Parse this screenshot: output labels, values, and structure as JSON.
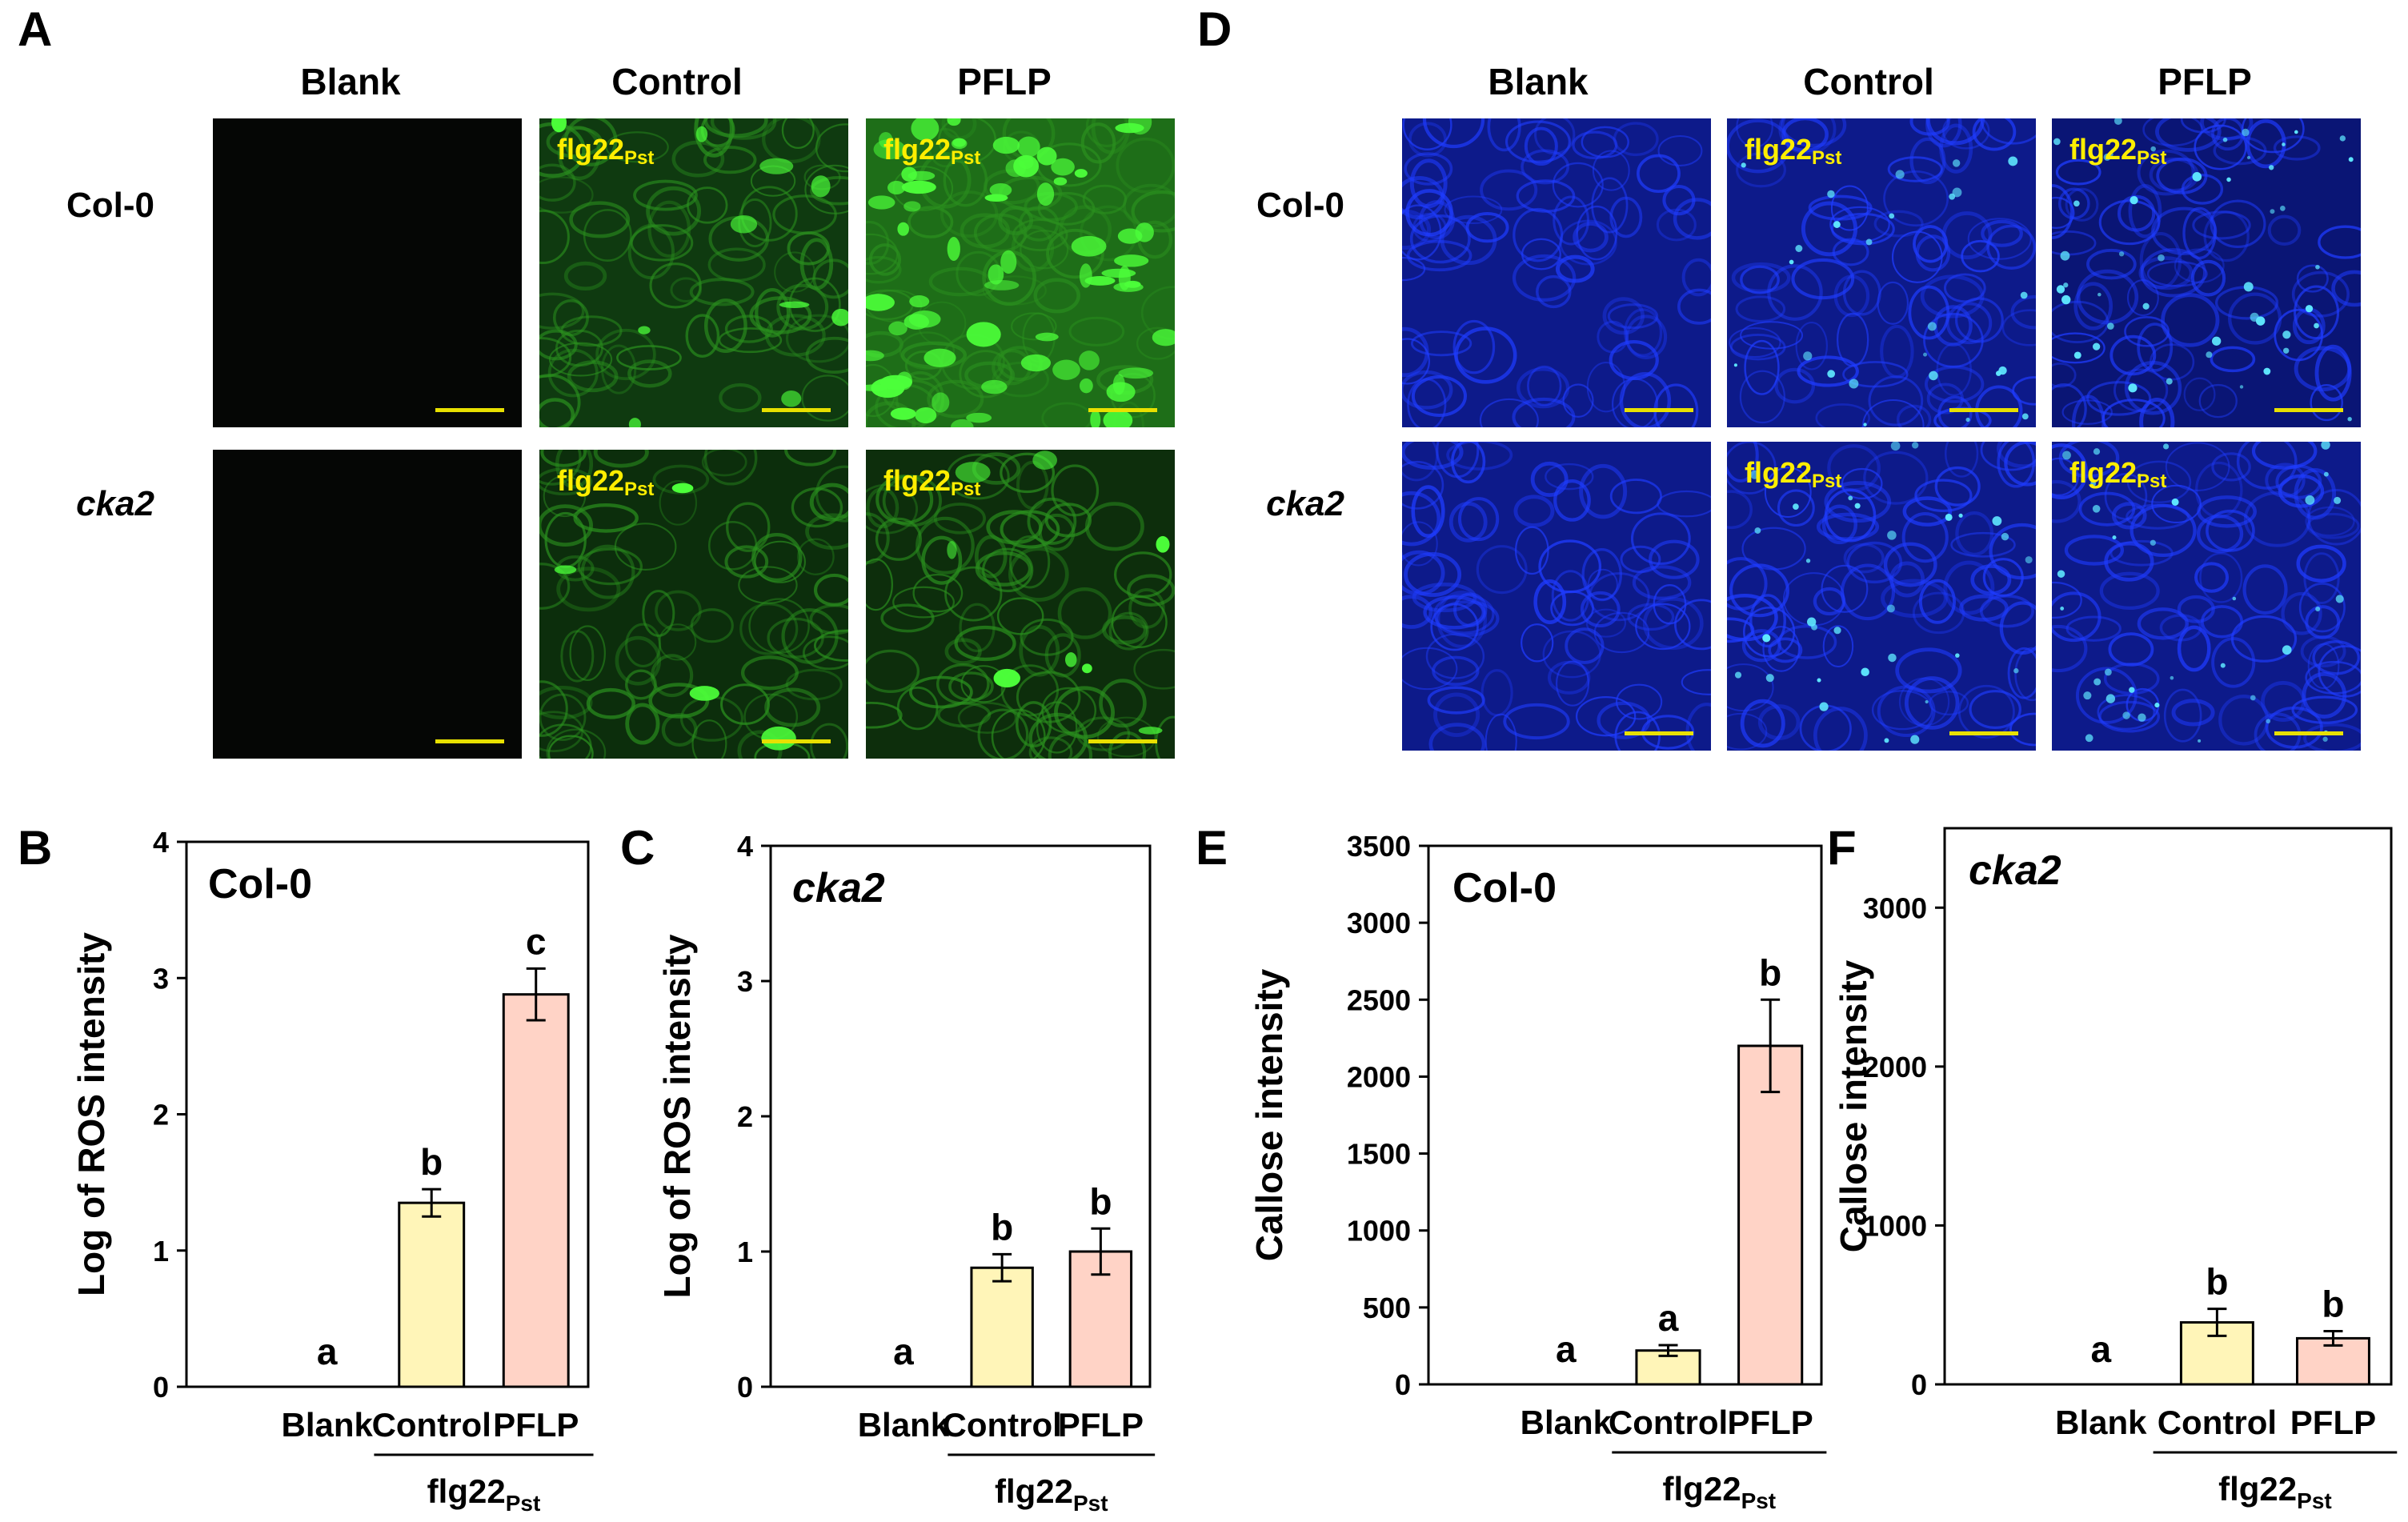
{
  "panels": {
    "A": {
      "letter": "A",
      "columns": [
        "Blank",
        "Control",
        "PFLP"
      ],
      "rows": [
        "Col-0",
        "cka2"
      ],
      "tag_main": "flg22",
      "tag_sub": "Pst",
      "stain": "ROS",
      "colors": {
        "cell": "#2a8f1e",
        "bright": "#4cff3a"
      }
    },
    "D": {
      "letter": "D",
      "columns": [
        "Blank",
        "Control",
        "PFLP"
      ],
      "rows": [
        "Col-0",
        "cka2"
      ],
      "tag_main": "flg22",
      "tag_sub": "Pst",
      "stain": "Callose",
      "colors": {
        "cell": "#1f3cff",
        "bright": "#5fe8ff"
      }
    }
  },
  "colors": {
    "blank_bar": "#ffffff",
    "control_bar": "#fff5b8",
    "pflp_bar": "#ffd3c6",
    "tag_yellow": "#ffee00"
  },
  "chart_data": [
    {
      "id": "B",
      "type": "bar",
      "title": "Col-0",
      "title_italic": false,
      "ylabel": "Log of ROS intensity",
      "ylim": [
        0,
        4
      ],
      "yticks": [
        0,
        1,
        2,
        3,
        4
      ],
      "categories": [
        "Blank",
        "Control",
        "PFLP"
      ],
      "values": [
        0,
        1.35,
        2.88
      ],
      "errors": [
        0,
        0.1,
        0.19
      ],
      "letters": [
        "a",
        "b",
        "c"
      ],
      "group_label": "flg22",
      "group_label_sub": "Pst"
    },
    {
      "id": "C",
      "type": "bar",
      "title": "cka2",
      "title_italic": true,
      "ylabel": "Log of ROS intensity",
      "ylim": [
        0,
        4
      ],
      "yticks": [
        0,
        1,
        2,
        3,
        4
      ],
      "categories": [
        "Blank",
        "Control",
        "PFLP"
      ],
      "values": [
        0,
        0.88,
        1.0
      ],
      "errors": [
        0,
        0.1,
        0.17
      ],
      "letters": [
        "a",
        "b",
        "b"
      ],
      "group_label": "flg22",
      "group_label_sub": "Pst"
    },
    {
      "id": "E",
      "type": "bar",
      "title": "Col-0",
      "title_italic": false,
      "ylabel": "Callose intensity",
      "ylim": [
        0,
        3500
      ],
      "yticks": [
        0,
        500,
        1000,
        1500,
        2000,
        2500,
        3000,
        3500
      ],
      "categories": [
        "Blank",
        "Control",
        "PFLP"
      ],
      "values": [
        0,
        220,
        2200
      ],
      "errors": [
        0,
        35,
        300
      ],
      "letters": [
        "a",
        "a",
        "b"
      ],
      "group_label": "flg22",
      "group_label_sub": "Pst"
    },
    {
      "id": "F",
      "type": "bar",
      "title": "cka2",
      "title_italic": true,
      "ylabel": "Callose intensity",
      "ylim": [
        0,
        3500
      ],
      "yticks": [
        0,
        1000,
        2000,
        3000
      ],
      "categories": [
        "Blank",
        "Control",
        "PFLP"
      ],
      "values": [
        0,
        390,
        290
      ],
      "errors": [
        0,
        85,
        45
      ],
      "letters": [
        "a",
        "b",
        "b"
      ],
      "group_label": "flg22",
      "group_label_sub": "Pst"
    }
  ]
}
